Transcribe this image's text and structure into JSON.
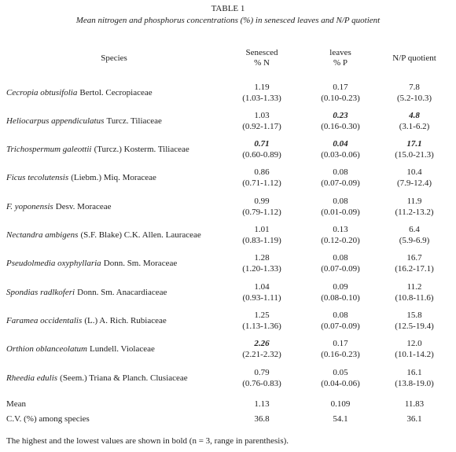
{
  "header": {
    "title": "TABLE 1",
    "caption": "Mean nitrogen and phosphorus concentrations (%) in senesced leaves and N/P quotient"
  },
  "table": {
    "columns": [
      {
        "lines": [
          "Species"
        ]
      },
      {
        "lines": [
          "Senesced",
          "% N"
        ]
      },
      {
        "lines": [
          "leaves",
          "% P"
        ]
      },
      {
        "lines": [
          "N/P quotient"
        ]
      }
    ],
    "rows": [
      {
        "name": "Cecropia obtusifolia",
        "authority": "Bertol. Cecropiaceae",
        "cells": [
          {
            "value": "1.19",
            "range": "(1.03-1.33)"
          },
          {
            "value": "0.17",
            "range": "(0.10-0.23)"
          },
          {
            "value": "7.8",
            "range": "(5.2-10.3)"
          }
        ]
      },
      {
        "name": "Heliocarpus appendiculatus",
        "authority": "Turcz. Tiliaceae",
        "cells": [
          {
            "value": "1.03",
            "range": "(0.92-1.17)"
          },
          {
            "value": "0.23",
            "range": "(0.16-0.30)",
            "bold": true
          },
          {
            "value": "4.8",
            "range": "(3.1-6.2)",
            "bold": true
          }
        ]
      },
      {
        "name": "Trichospermum galeottii",
        "authority": "(Turcz.) Kosterm. Tiliaceae",
        "cells": [
          {
            "value": "0.71",
            "range": "(0.60-0.89)",
            "bold": true
          },
          {
            "value": "0.04",
            "range": "(0.03-0.06)",
            "bold": true
          },
          {
            "value": "17.1",
            "range": "(15.0-21.3)",
            "bold": true
          }
        ]
      },
      {
        "name": "Ficus tecolutensis",
        "authority": "(Liebm.) Miq. Moraceae",
        "cells": [
          {
            "value": "0.86",
            "range": "(0.71-1.12)"
          },
          {
            "value": "0.08",
            "range": "(0.07-0.09)"
          },
          {
            "value": "10.4",
            "range": "(7.9-12.4)"
          }
        ]
      },
      {
        "name": "F. yoponensis",
        "authority": "Desv. Moraceae",
        "cells": [
          {
            "value": "0.99",
            "range": "(0.79-1.12)"
          },
          {
            "value": "0.08",
            "range": "(0.01-0.09)"
          },
          {
            "value": "11.9",
            "range": "(11.2-13.2)"
          }
        ]
      },
      {
        "name": "Nectandra ambigens",
        "authority": "(S.F. Blake) C.K. Allen. Lauraceae",
        "cells": [
          {
            "value": "1.01",
            "range": "(0.83-1.19)"
          },
          {
            "value": "0.13",
            "range": "(0.12-0.20)"
          },
          {
            "value": "6.4",
            "range": "(5.9-6.9)"
          }
        ]
      },
      {
        "name": "Pseudolmedia oxyphyllaria",
        "authority": "Donn. Sm. Moraceae",
        "cells": [
          {
            "value": "1.28",
            "range": "(1.20-1.33)"
          },
          {
            "value": "0.08",
            "range": "(0.07-0.09)"
          },
          {
            "value": "16.7",
            "range": "(16.2-17.1)"
          }
        ]
      },
      {
        "name": "Spondias radlkoferi",
        "authority": "Donn. Sm. Anacardiaceae",
        "cells": [
          {
            "value": "1.04",
            "range": "(0.93-1.11)"
          },
          {
            "value": "0.09",
            "range": "(0.08-0.10)"
          },
          {
            "value": "11.2",
            "range": "(10.8-11.6)"
          }
        ]
      },
      {
        "name": "Faramea occidentalis",
        "authority": "(L.) A. Rich. Rubiaceae",
        "cells": [
          {
            "value": "1.25",
            "range": "(1.13-1.36)"
          },
          {
            "value": "0.08",
            "range": "(0.07-0.09)"
          },
          {
            "value": "15.8",
            "range": "(12.5-19.4)"
          }
        ]
      },
      {
        "name": "Orthion oblanceolatum",
        "authority": "Lundell. Violaceae",
        "cells": [
          {
            "value": "2.26",
            "range": "(2.21-2.32)",
            "bold": true
          },
          {
            "value": "0.17",
            "range": "(0.16-0.23)"
          },
          {
            "value": "12.0",
            "range": "(10.1-14.2)"
          }
        ]
      },
      {
        "name": "Rheedia edulis",
        "authority": "(Seem.) Triana & Planch. Clusiaceae",
        "cells": [
          {
            "value": "0.79",
            "range": "(0.76-0.83)"
          },
          {
            "value": "0.05",
            "range": "(0.04-0.06)"
          },
          {
            "value": "16.1",
            "range": "(13.8-19.0)"
          }
        ]
      }
    ],
    "summary": [
      {
        "label": "Mean",
        "cells": [
          "1.13",
          "0.109",
          "11.83"
        ]
      },
      {
        "label": "C.V. (%) among species",
        "cells": [
          "36.8",
          "54.1",
          "36.1"
        ]
      }
    ]
  },
  "footnote": "The highest and the lowest values are shown in bold (n = 3, range in parenthesis)."
}
